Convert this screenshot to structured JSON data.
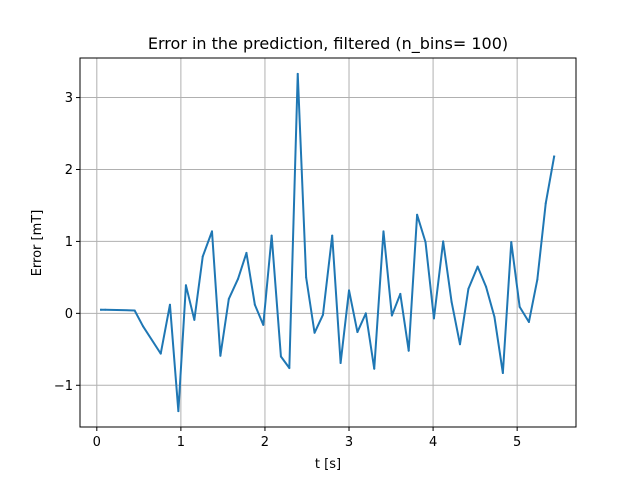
{
  "chart_data": {
    "type": "line",
    "title": "Error in the prediction, filtered (n_bins= 100)",
    "xlabel": "t [s]",
    "ylabel": "Error [mT]",
    "xlim": [
      -0.2,
      5.7
    ],
    "ylim": [
      -1.58,
      3.55
    ],
    "xticks": [
      0,
      1,
      2,
      3,
      4,
      5
    ],
    "yticks": [
      -1,
      0,
      1,
      2,
      3
    ],
    "xtick_labels": [
      "0",
      "1",
      "2",
      "3",
      "4",
      "5"
    ],
    "ytick_labels": [
      "−1",
      "0",
      "1",
      "2",
      "3"
    ],
    "grid": true,
    "series": [
      {
        "color": "#1f77b4",
        "x": [
          0.05,
          0.1,
          0.45,
          0.55,
          0.76,
          0.87,
          0.97,
          1.06,
          1.16,
          1.26,
          1.37,
          1.47,
          1.57,
          1.68,
          1.78,
          1.88,
          1.98,
          2.08,
          2.19,
          2.29,
          2.39,
          2.49,
          2.59,
          2.69,
          2.8,
          2.9,
          3.0,
          3.1,
          3.2,
          3.3,
          3.41,
          3.51,
          3.61,
          3.71,
          3.81,
          3.91,
          4.01,
          4.12,
          4.22,
          4.32,
          4.42,
          4.53,
          4.63,
          4.73,
          4.83,
          4.93,
          5.03,
          5.14,
          5.24,
          5.34,
          5.44
        ],
        "y": [
          0.05,
          0.05,
          0.04,
          -0.18,
          -0.56,
          0.12,
          -1.36,
          0.39,
          -0.09,
          0.79,
          1.14,
          -0.59,
          0.2,
          0.48,
          0.84,
          0.12,
          -0.16,
          1.08,
          -0.6,
          -0.76,
          3.33,
          0.5,
          -0.27,
          -0.02,
          1.08,
          -0.69,
          0.32,
          -0.26,
          0.0,
          -0.77,
          1.14,
          -0.03,
          0.27,
          -0.52,
          1.37,
          0.99,
          -0.07,
          1.0,
          0.16,
          -0.43,
          0.34,
          0.65,
          0.37,
          -0.05,
          -0.83,
          0.99,
          0.09,
          -0.12,
          0.47,
          1.53,
          2.18
        ]
      }
    ]
  }
}
